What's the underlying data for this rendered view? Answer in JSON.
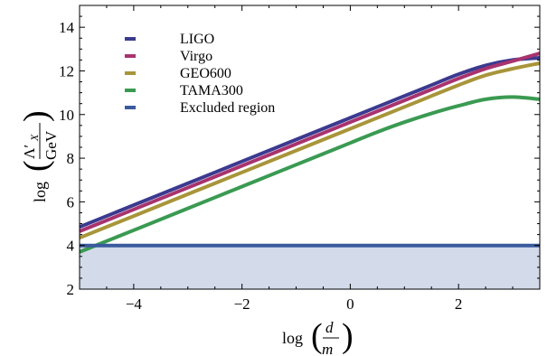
{
  "chart_data": {
    "type": "line",
    "xlabel": {
      "prefix": "log",
      "numerator": "d",
      "denominator": "m"
    },
    "ylabel": {
      "prefix": "log",
      "numerator": "Λ′",
      "numerator_subscript": "X",
      "denominator": "GeV"
    },
    "xlim": [
      -5,
      3.5
    ],
    "ylim": [
      2,
      15
    ],
    "x_ticks": [
      -4,
      -2,
      0,
      2
    ],
    "x_tick_labels": [
      "−4",
      "−2",
      "0",
      "2"
    ],
    "y_ticks": [
      2,
      4,
      6,
      8,
      10,
      12,
      14
    ],
    "y_tick_labels": [
      "2",
      "4",
      "6",
      "8",
      "10",
      "12",
      "14"
    ],
    "grid": false,
    "legend_position": "top-left",
    "series": [
      {
        "name": "LIGO",
        "color": "#3b3a8f",
        "x": [
          -5,
          -4,
          -3,
          -2,
          -1,
          0,
          1,
          1.5,
          2,
          2.5,
          3,
          3.5
        ],
        "y": [
          4.85,
          5.85,
          6.85,
          7.85,
          8.85,
          9.85,
          10.85,
          11.35,
          11.85,
          12.25,
          12.5,
          12.6
        ]
      },
      {
        "name": "Virgo",
        "color": "#a8336f",
        "x": [
          -5,
          -4,
          -3,
          -2,
          -1,
          0,
          1,
          1.5,
          2,
          2.5,
          3,
          3.5
        ],
        "y": [
          4.65,
          5.65,
          6.65,
          7.65,
          8.65,
          9.65,
          10.65,
          11.15,
          11.65,
          12.1,
          12.45,
          12.8
        ]
      },
      {
        "name": "GEO600",
        "color": "#a8953a",
        "x": [
          -5,
          -4,
          -3,
          -2,
          -1,
          0,
          1,
          1.5,
          2,
          2.5,
          3,
          3.5
        ],
        "y": [
          4.35,
          5.35,
          6.35,
          7.35,
          8.35,
          9.35,
          10.35,
          10.85,
          11.35,
          11.8,
          12.1,
          12.35
        ]
      },
      {
        "name": "TAMA300",
        "color": "#3a9a52",
        "x": [
          -5,
          -4,
          -3,
          -2,
          -1,
          0,
          0.5,
          1,
          1.5,
          2,
          2.5,
          3,
          3.5
        ],
        "y": [
          3.7,
          4.7,
          5.7,
          6.7,
          7.7,
          8.7,
          9.2,
          9.65,
          10.05,
          10.4,
          10.7,
          10.8,
          10.7
        ]
      }
    ],
    "excluded_region": {
      "name": "Excluded region",
      "color": "#3a5a9e",
      "fill_color": "#d3daea",
      "y_max": 4
    }
  }
}
